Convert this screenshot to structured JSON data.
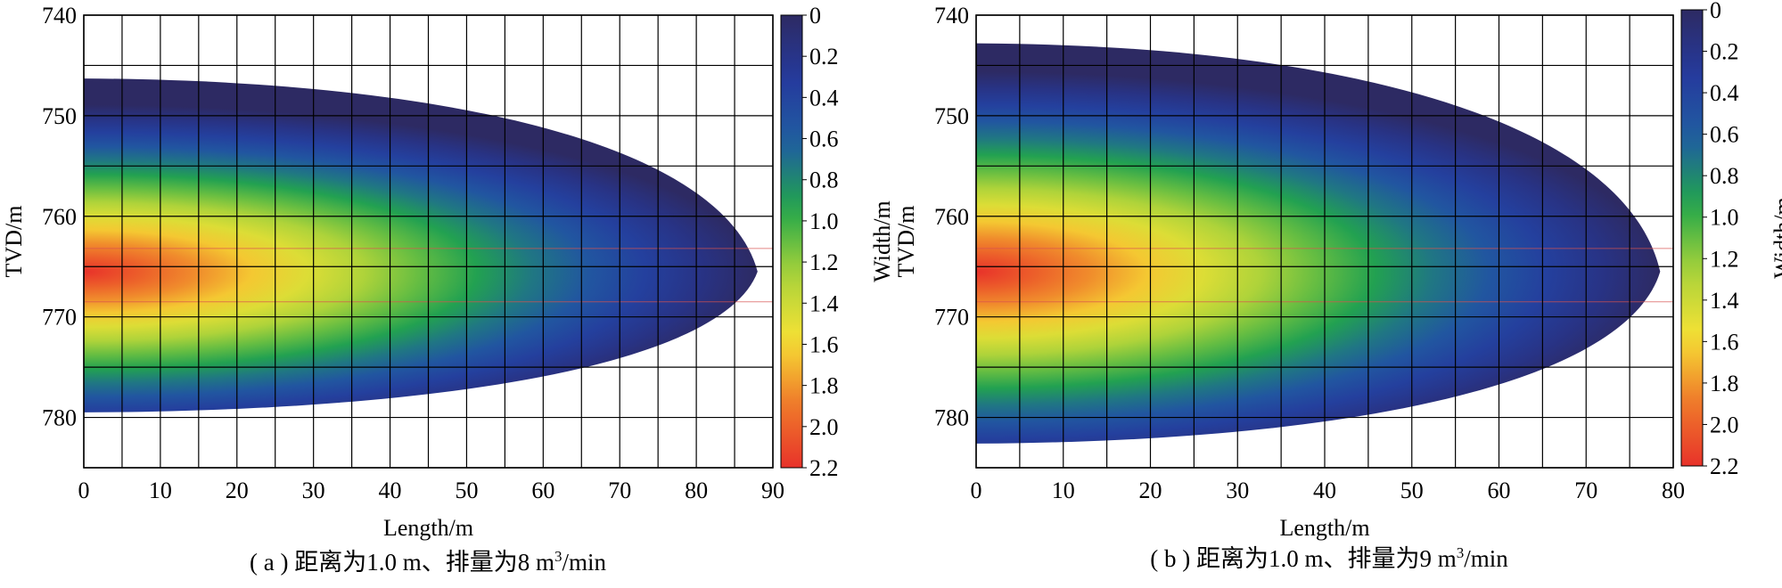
{
  "chart_data": [
    {
      "type": "heatmap",
      "panel": "a",
      "caption": "( a ) 距离为1.0 m、排量为8 m³/min",
      "caption_parts": {
        "prefix": "( a ) 距离为1.0 m、排量为8 m",
        "sup": "3",
        "suffix": "/min"
      },
      "xlabel": "Length/m",
      "ylabel": "TVD/m",
      "colorbar_label": "Width/m",
      "xlim": [
        0,
        90
      ],
      "ylim": [
        740,
        785
      ],
      "y_inverted": true,
      "x_ticks": [
        "0",
        "10",
        "20",
        "30",
        "40",
        "50",
        "60",
        "70",
        "80",
        "90"
      ],
      "y_ticks": [
        "740",
        "750",
        "760",
        "770",
        "780"
      ],
      "colorbar_ticks": [
        "0",
        "0.2",
        "0.4",
        "0.6",
        "0.8",
        "1.0",
        "1.2",
        "1.4",
        "1.6",
        "1.8",
        "2.0",
        "2.2"
      ],
      "colorbar_range": [
        0,
        2.2
      ],
      "grid": true,
      "fracture": {
        "length": 88,
        "top": 746.3,
        "bottom": 779.5,
        "center": 765.5,
        "max_width": 2.2,
        "perforation_lines": [
          763.2,
          768.5
        ]
      }
    },
    {
      "type": "heatmap",
      "panel": "b",
      "caption": "( b ) 距离为1.0 m、排量为9 m³/min",
      "caption_parts": {
        "prefix": "( b ) 距离为1.0 m、排量为9 m",
        "sup": "3",
        "suffix": "/min"
      },
      "xlabel": "Length/m",
      "ylabel": "TVD/m",
      "colorbar_label": "Width/m",
      "xlim": [
        0,
        80
      ],
      "ylim": [
        740,
        785
      ],
      "y_inverted": true,
      "x_ticks": [
        "0",
        "10",
        "20",
        "30",
        "40",
        "50",
        "60",
        "70",
        "80"
      ],
      "y_ticks": [
        "740",
        "750",
        "760",
        "770",
        "780"
      ],
      "colorbar_ticks": [
        "0",
        "0.2",
        "0.4",
        "0.6",
        "0.8",
        "1.0",
        "1.2",
        "1.4",
        "1.6",
        "1.8",
        "2.0",
        "2.2"
      ],
      "colorbar_range": [
        0,
        2.2
      ],
      "grid": true,
      "fracture": {
        "length": 78.5,
        "top": 742.8,
        "bottom": 782.6,
        "center": 765.5,
        "max_width": 2.2,
        "perforation_lines": [
          763.2,
          768.5
        ]
      }
    }
  ],
  "colormap": [
    "#e8322a",
    "#ef7b2a",
    "#f6e234",
    "#a8d23a",
    "#22a74a",
    "#1f5fa0",
    "#253a9e",
    "#2d2a63"
  ]
}
